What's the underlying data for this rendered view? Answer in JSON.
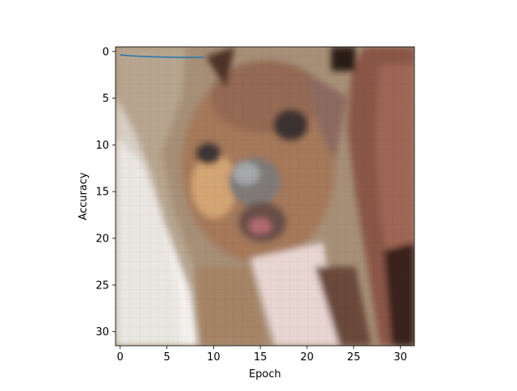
{
  "chart_data": {
    "type": "line",
    "title": "",
    "xlabel": "Epoch",
    "ylabel": "Accuracy",
    "xlim": [
      -0.5,
      31.5
    ],
    "ylim": [
      31.5,
      -0.5
    ],
    "y_inverted": true,
    "grid": false,
    "x_ticks": [
      0,
      5,
      10,
      15,
      20,
      25,
      30
    ],
    "y_ticks": [
      0,
      5,
      10,
      15,
      20,
      25,
      30
    ],
    "background_image": {
      "kind": "pixelated photo",
      "subject": "dog-face",
      "grid_size": [
        32,
        32
      ]
    },
    "series": [
      {
        "color": "#1f77b4",
        "x": [
          0,
          1,
          2,
          3,
          4,
          5,
          6,
          7,
          8,
          9
        ],
        "y": [
          0.35,
          0.45,
          0.5,
          0.55,
          0.58,
          0.6,
          0.62,
          0.63,
          0.64,
          0.65
        ]
      }
    ]
  }
}
